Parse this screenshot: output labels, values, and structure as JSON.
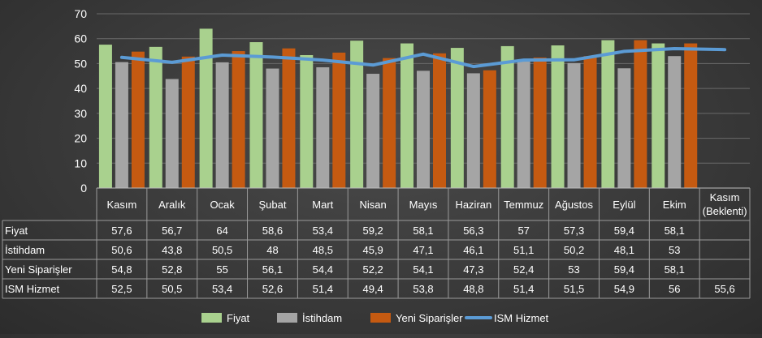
{
  "chart_data": {
    "type": "bar",
    "categories": [
      "Kasım",
      "Aralık",
      "Ocak",
      "Şubat",
      "Mart",
      "Nisan",
      "Mayıs",
      "Haziran",
      "Temmuz",
      "Ağustos",
      "Eylül",
      "Ekim",
      "Kasım (Beklenti)"
    ],
    "category_lines": [
      [
        "Kasım"
      ],
      [
        "Aralık"
      ],
      [
        "Ocak"
      ],
      [
        "Şubat"
      ],
      [
        "Mart"
      ],
      [
        "Nisan"
      ],
      [
        "Mayıs"
      ],
      [
        "Haziran"
      ],
      [
        "Temmuz"
      ],
      [
        "Ağustos"
      ],
      [
        "Eylül"
      ],
      [
        "Ekim"
      ],
      [
        "Kasım",
        "(Beklenti)"
      ]
    ],
    "series": [
      {
        "name": "Fiyat",
        "kind": "bar",
        "color": "#a9d18e",
        "values": [
          57.6,
          56.7,
          64,
          58.6,
          53.4,
          59.2,
          58.1,
          56.3,
          57,
          57.3,
          59.4,
          58.1,
          null
        ],
        "labels": [
          "57,6",
          "56,7",
          "64",
          "58,6",
          "53,4",
          "59,2",
          "58,1",
          "56,3",
          "57",
          "57,3",
          "59,4",
          "58,1",
          ""
        ]
      },
      {
        "name": "İstihdam",
        "kind": "bar",
        "color": "#a5a5a5",
        "values": [
          50.6,
          43.8,
          50.5,
          48,
          48.5,
          45.9,
          47.1,
          46.1,
          51.1,
          50.2,
          48.1,
          53,
          null
        ],
        "labels": [
          "50,6",
          "43,8",
          "50,5",
          "48",
          "48,5",
          "45,9",
          "47,1",
          "46,1",
          "51,1",
          "50,2",
          "48,1",
          "53",
          ""
        ]
      },
      {
        "name": "Yeni Siparişler",
        "kind": "bar",
        "color": "#c55a11",
        "values": [
          54.8,
          52.8,
          55,
          56.1,
          54.4,
          52.2,
          54.1,
          47.3,
          52.4,
          53,
          59.4,
          58.1,
          null
        ],
        "labels": [
          "54,8",
          "52,8",
          "55",
          "56,1",
          "54,4",
          "52,2",
          "54,1",
          "47,3",
          "52,4",
          "53",
          "59,4",
          "58,1",
          ""
        ]
      },
      {
        "name": "ISM Hizmet",
        "kind": "line",
        "color": "#5b9bd5",
        "values": [
          52.5,
          50.5,
          53.4,
          52.6,
          51.4,
          49.4,
          53.8,
          48.8,
          51.4,
          51.5,
          54.9,
          56,
          55.6
        ],
        "labels": [
          "52,5",
          "50,5",
          "53,4",
          "52,6",
          "51,4",
          "49,4",
          "53,8",
          "48,8",
          "51,4",
          "51,5",
          "54,9",
          "56",
          "55,6"
        ]
      }
    ],
    "y_ticks": [
      "0",
      "10",
      "20",
      "30",
      "40",
      "50",
      "60",
      "70"
    ],
    "ylim": [
      0,
      70
    ],
    "grid": true,
    "legend": "bottom",
    "data_table": true
  }
}
